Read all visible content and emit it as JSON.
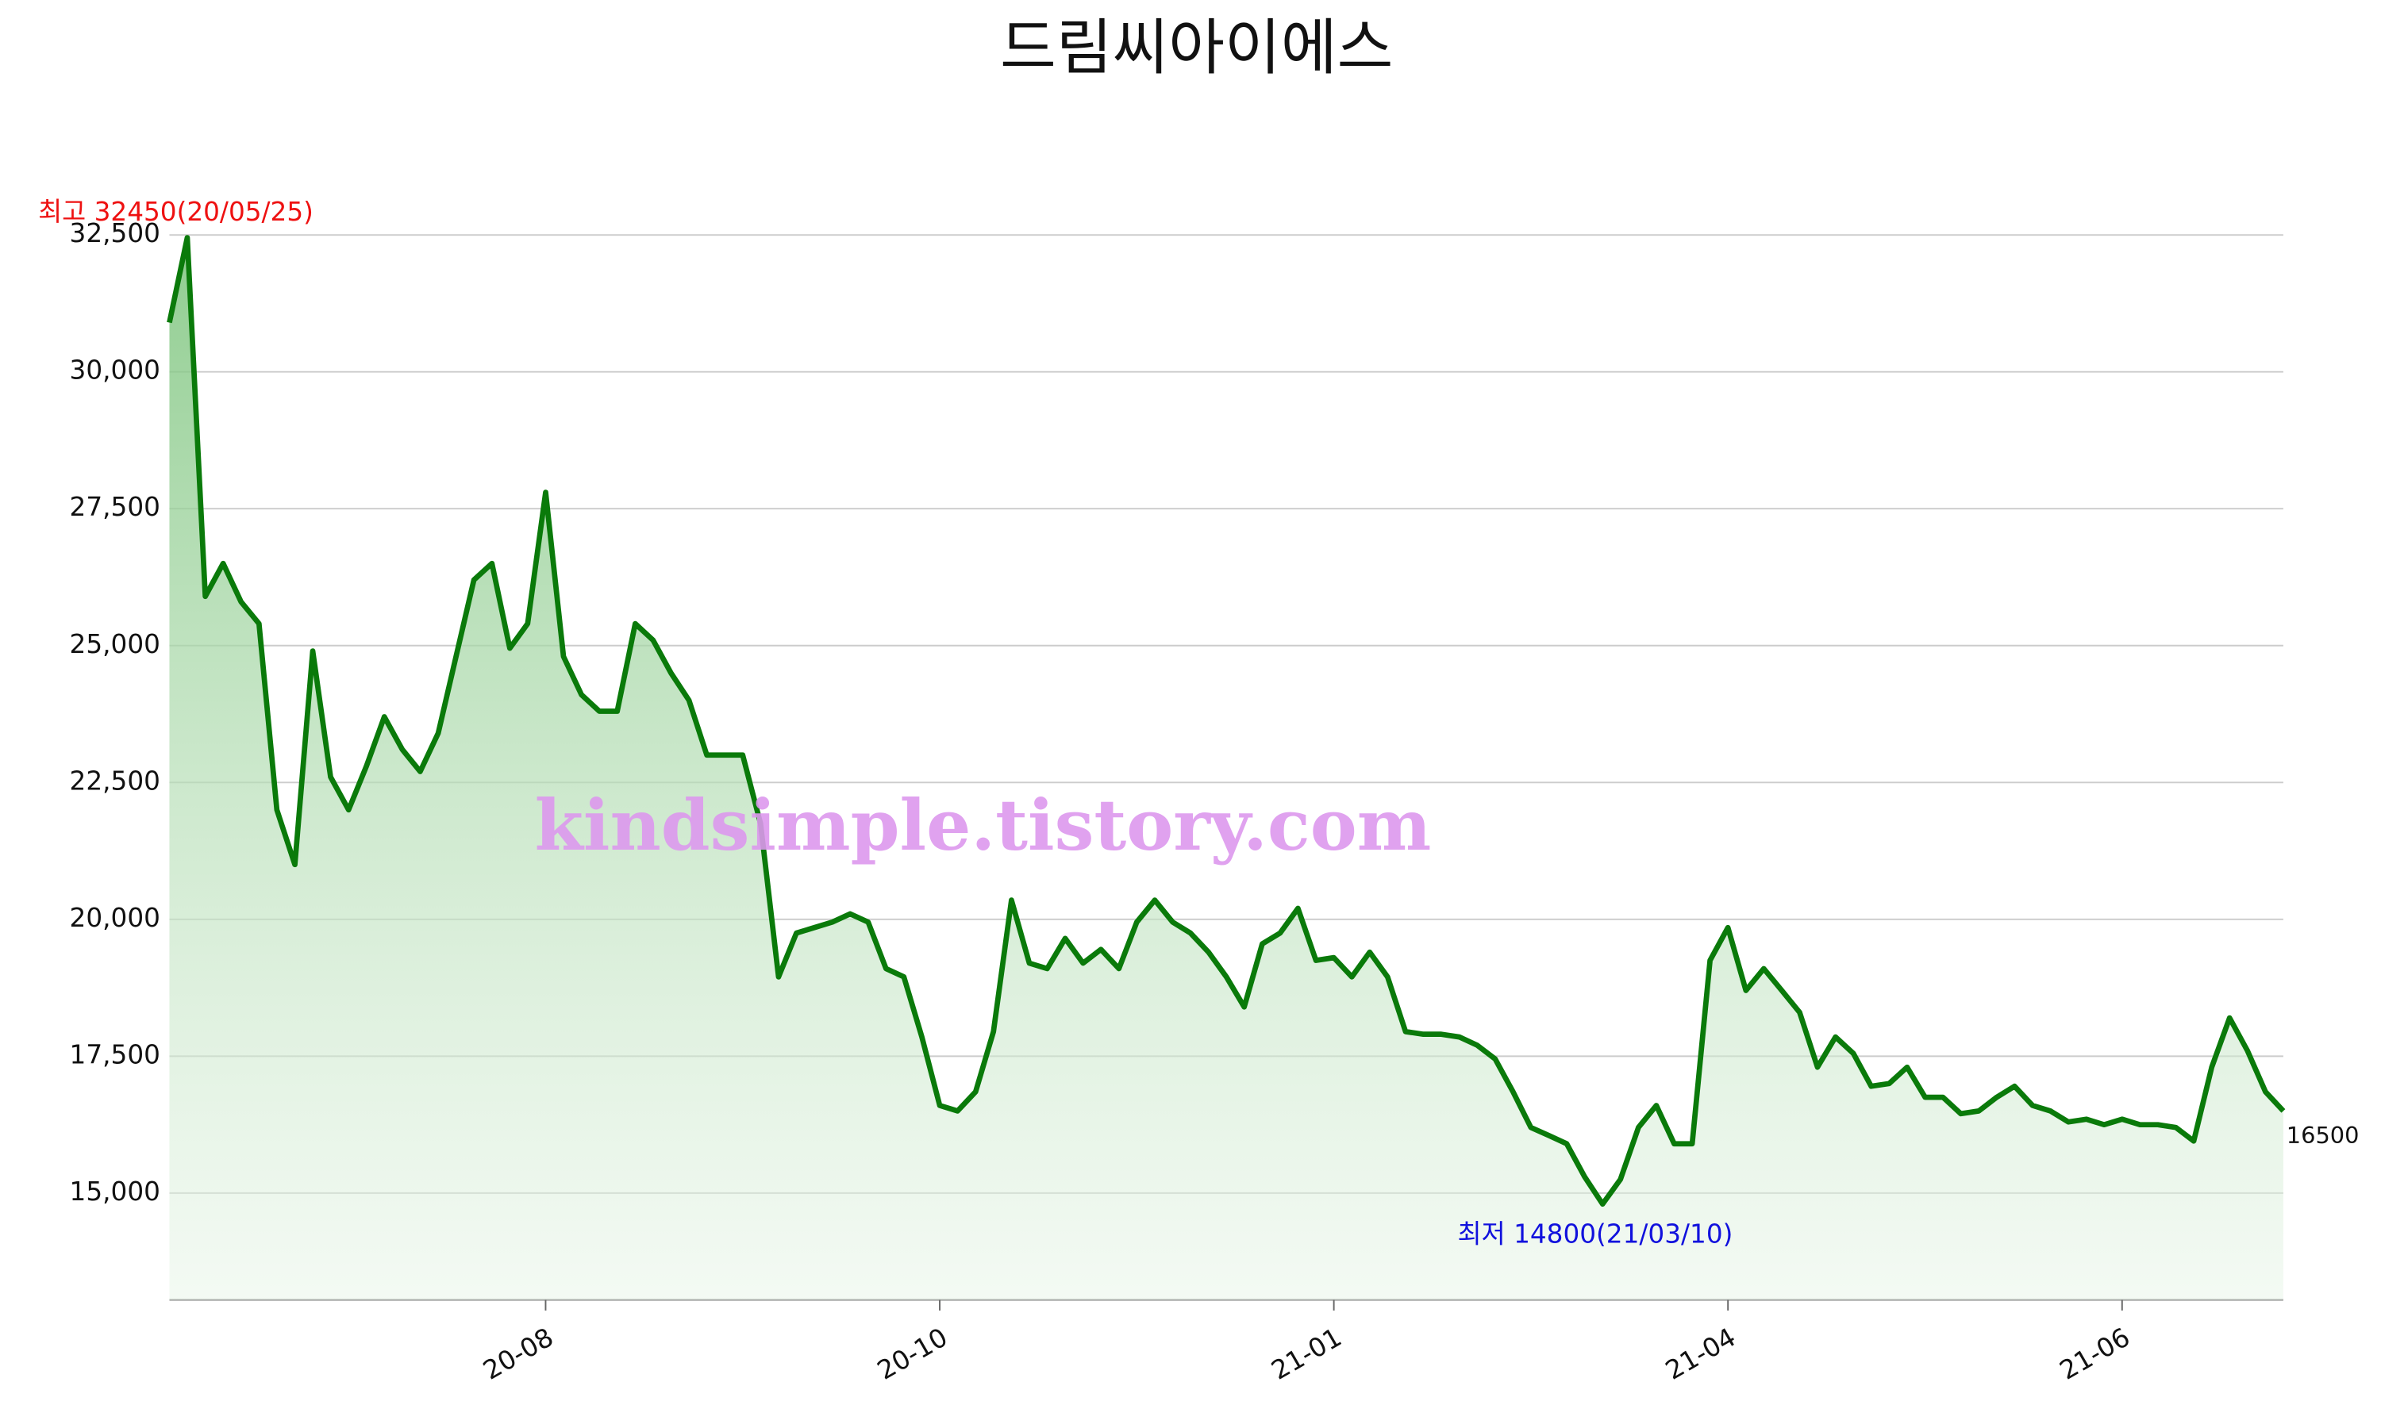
{
  "chart_data": {
    "type": "line",
    "title": "드림씨아이에스",
    "watermark": "kindsimple.tistory.com",
    "annotations": {
      "high": "최고 32450(20/05/25)",
      "low": "최저 14800(21/03/10)"
    },
    "color": "#0a7a0a",
    "values": [
      30900,
      32450,
      25900,
      26500,
      25800,
      25400,
      22000,
      21000,
      24900,
      22600,
      22000,
      22800,
      23700,
      23100,
      22700,
      23400,
      24800,
      26200,
      26500,
      24950,
      25400,
      27800,
      24800,
      24100,
      23800,
      23800,
      25400,
      25100,
      24500,
      24000,
      23000,
      23000,
      23000,
      21750,
      18950,
      19750,
      19850,
      19950,
      20100,
      19950,
      19100,
      18950,
      17850,
      16600,
      16500,
      16850,
      17950,
      20350,
      19200,
      19100,
      19650,
      19200,
      19450,
      19100,
      19950,
      20350,
      19950,
      19750,
      19400,
      18950,
      18400,
      19550,
      19750,
      20200,
      19250,
      19300,
      18950,
      19400,
      18950,
      17950,
      17900,
      17900,
      17850,
      17700,
      17450,
      16850,
      16200,
      16050,
      15900,
      15300,
      14800,
      15250,
      16200,
      16600,
      15900,
      15900,
      19250,
      19850,
      18700,
      19100,
      18700,
      18300,
      17300,
      17850,
      17550,
      16950,
      17000,
      17300,
      16750,
      16750,
      16450,
      16500,
      16750,
      16950,
      16600,
      16500,
      16300,
      16350,
      16250,
      16350,
      16250,
      16250,
      16200,
      15950,
      17300,
      18200,
      17600,
      16850,
      16500
    ],
    "xlim": [
      0,
      118
    ],
    "xticks": [
      {
        "value": 21,
        "label": "20-08"
      },
      {
        "value": 43,
        "label": "20-10"
      },
      {
        "value": 65,
        "label": "21-01"
      },
      {
        "value": 87,
        "label": "21-04"
      },
      {
        "value": 109,
        "label": "21-06"
      }
    ],
    "ylim": [
      13050,
      32500
    ],
    "yticks": [
      {
        "value": 15000,
        "label": "15,000"
      },
      {
        "value": 17500,
        "label": "17,500"
      },
      {
        "value": 20000,
        "label": "20,000"
      },
      {
        "value": 22500,
        "label": "22,500"
      },
      {
        "value": 25000,
        "label": "25,000"
      },
      {
        "value": 27500,
        "label": "27,500"
      },
      {
        "value": 30000,
        "label": "30,000"
      },
      {
        "value": 32500,
        "label": "32,500"
      }
    ],
    "grid": true
  }
}
